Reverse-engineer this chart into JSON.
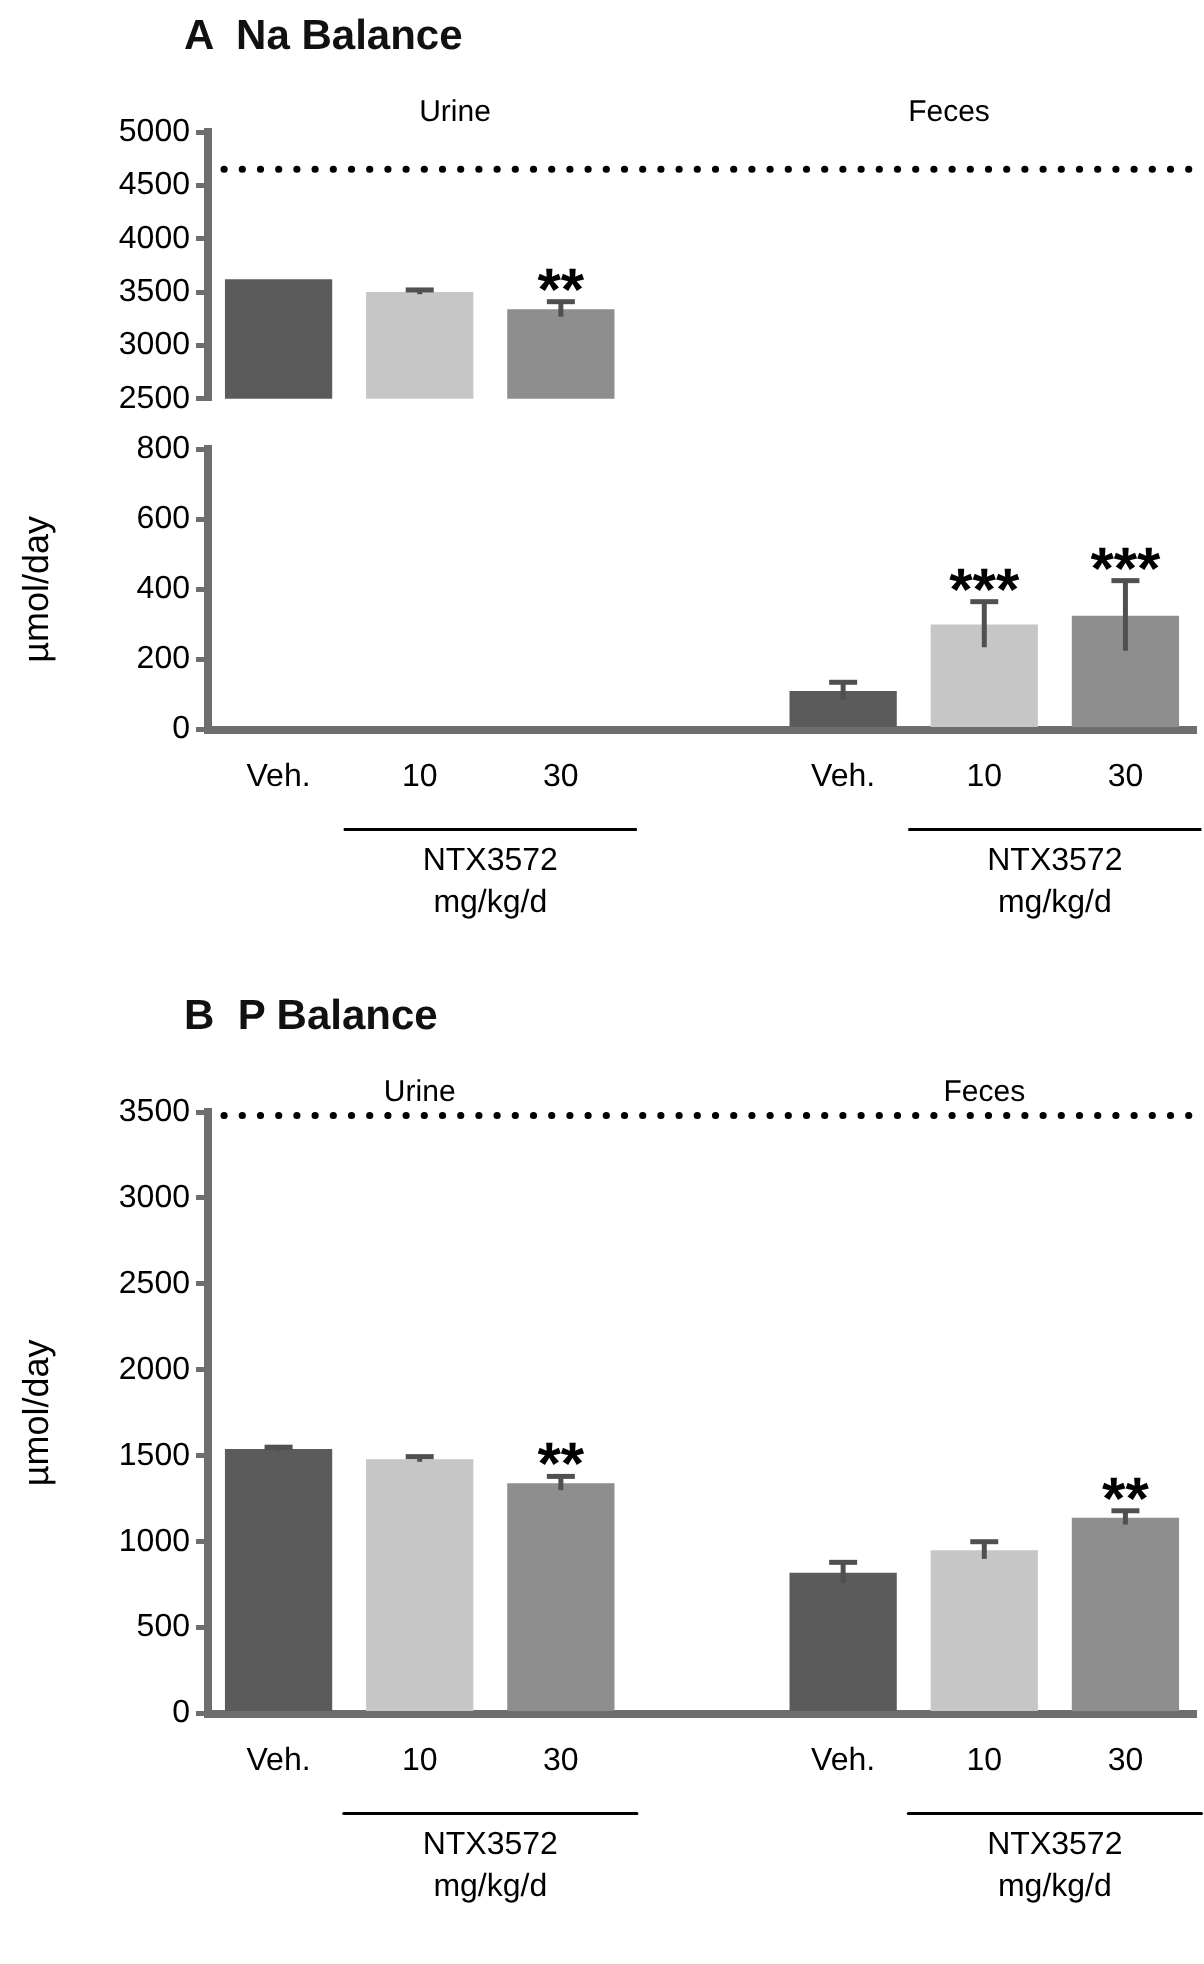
{
  "chart_data": [
    {
      "type": "bar",
      "title": "A  Na Balance",
      "categories": [
        null,
        null,
        null,
        null,
        null,
        null,
        null
      ],
      "values": [
        3620,
        3500,
        3340,
        null,
        null,
        null,
        null
      ],
      "colors": [
        "#5b5b5b",
        "#c6c6c6",
        "#8e8e8e",
        null,
        "#5b5b5b",
        "#c6c6c6",
        "#8e8e8e"
      ],
      "errors": [
        null,
        20,
        70,
        null,
        null,
        null,
        null
      ],
      "value_labels": [
        null,
        null,
        "**",
        null,
        null,
        null,
        null
      ],
      "ylim": [
        2500,
        5000
      ],
      "yticks": [
        2500,
        3000,
        3500,
        4000,
        4500,
        5000
      ],
      "grid": false,
      "legend": false,
      "tick_labels": "y",
      "ref_lines": [
        {
          "axis": "y",
          "value": 4650,
          "line_style": "dotted",
          "color": "#000000"
        }
      ],
      "annotations": [
        "Urine",
        "Feces"
      ]
    },
    {
      "type": "bar",
      "ylabel": "µmol/day",
      "categories": [
        "Veh.",
        "10",
        "30",
        null,
        "Veh.",
        "10",
        "30"
      ],
      "values": [
        null,
        null,
        null,
        null,
        110,
        300,
        325
      ],
      "colors": [
        "#5b5b5b",
        "#c6c6c6",
        "#8e8e8e",
        null,
        "#5b5b5b",
        "#c6c6c6",
        "#8e8e8e"
      ],
      "errors": [
        null,
        null,
        null,
        null,
        25,
        65,
        100
      ],
      "value_labels": [
        null,
        null,
        null,
        null,
        null,
        "***",
        "***"
      ],
      "ylim": [
        0,
        800
      ],
      "yticks": [
        0,
        200,
        400,
        600,
        800
      ],
      "grid": false,
      "legend": false,
      "annotations": [
        "NTX3572\nmg/kg/d",
        "NTX3572\nmg/kg/d"
      ]
    },
    {
      "type": "bar",
      "title": "B  P Balance",
      "ylabel": "µmol/day",
      "categories": [
        "Veh.",
        "10",
        "30",
        null,
        "Veh.",
        "10",
        "30"
      ],
      "values": [
        1540,
        1480,
        1340,
        null,
        820,
        950,
        1140
      ],
      "colors": [
        "#5b5b5b",
        "#c6c6c6",
        "#8e8e8e",
        null,
        "#5b5b5b",
        "#c6c6c6",
        "#8e8e8e"
      ],
      "errors": [
        10,
        15,
        40,
        null,
        60,
        50,
        40
      ],
      "value_labels": [
        null,
        null,
        "**",
        null,
        null,
        null,
        "**"
      ],
      "ylim": [
        0,
        3500
      ],
      "yticks": [
        0,
        500,
        1000,
        1500,
        2000,
        2500,
        3000,
        3500
      ],
      "grid": false,
      "legend": false,
      "ref_lines": [
        {
          "axis": "y",
          "value": 3480,
          "line_style": "dotted",
          "color": "#000000"
        }
      ],
      "annotations": [
        "Urine",
        "Feces",
        "NTX3572\nmg/kg/d",
        "NTX3572\nmg/kg/d"
      ]
    }
  ]
}
